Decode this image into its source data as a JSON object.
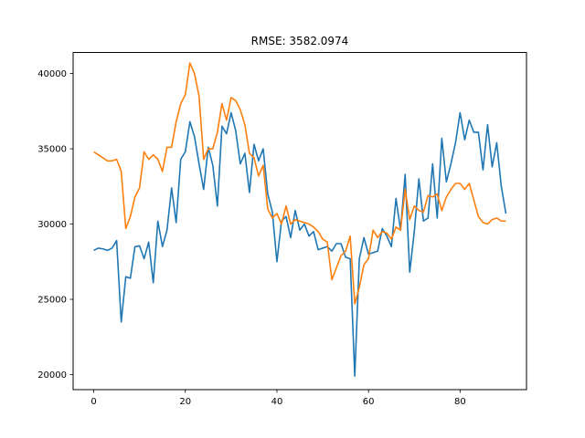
{
  "chart_data": {
    "type": "line",
    "title": "RMSE: 3582.0974",
    "xlabel": "",
    "ylabel": "",
    "xlim": [
      -4.5,
      94.5
    ],
    "ylim": [
      19000,
      41400
    ],
    "xticks": [
      0,
      20,
      40,
      60,
      80
    ],
    "yticks": [
      20000,
      25000,
      30000,
      35000,
      40000
    ],
    "x": [
      0,
      1,
      2,
      3,
      4,
      5,
      6,
      7,
      8,
      9,
      10,
      11,
      12,
      13,
      14,
      15,
      16,
      17,
      18,
      19,
      20,
      21,
      22,
      23,
      24,
      25,
      26,
      27,
      28,
      29,
      30,
      31,
      32,
      33,
      34,
      35,
      36,
      37,
      38,
      39,
      40,
      41,
      42,
      43,
      44,
      45,
      46,
      47,
      48,
      49,
      50,
      51,
      52,
      53,
      54,
      55,
      56,
      57,
      58,
      59,
      60,
      61,
      62,
      63,
      64,
      65,
      66,
      67,
      68,
      69,
      70,
      71,
      72,
      73,
      74,
      75,
      76,
      77,
      78,
      79,
      80,
      81,
      82,
      83,
      84,
      85,
      86,
      87,
      88,
      89,
      90
    ],
    "series": [
      {
        "color": "#1f77b4",
        "values": [
          28250,
          28400,
          28350,
          28250,
          28400,
          28900,
          23500,
          26500,
          26400,
          28500,
          28550,
          27700,
          28800,
          26100,
          30200,
          28500,
          29600,
          32400,
          30100,
          34300,
          34800,
          36800,
          35800,
          34000,
          32300,
          35100,
          33900,
          31200,
          36500,
          36000,
          37400,
          36200,
          34000,
          34700,
          32100,
          35300,
          34200,
          35000,
          32000,
          30800,
          27500,
          30200,
          30500,
          29100,
          30900,
          29600,
          30000,
          29200,
          29500,
          28300,
          28400,
          28500,
          28200,
          28700,
          28700,
          27800,
          27700,
          19900,
          27700,
          29100,
          28000,
          28100,
          28200,
          29700,
          29200,
          28500,
          31700,
          29600,
          33300,
          26800,
          29500,
          33000,
          30200,
          30400,
          34000,
          30400,
          35700,
          32800,
          34000,
          35400,
          37400,
          35600,
          36900,
          36100,
          36100,
          33600,
          36600,
          33800,
          35400,
          32500,
          30700
        ]
      },
      {
        "color": "#ff7f0e",
        "values": [
          34800,
          34600,
          34400,
          34200,
          34200,
          34300,
          33500,
          29700,
          30500,
          31800,
          32400,
          34800,
          34300,
          34600,
          34300,
          33500,
          35100,
          35100,
          36800,
          38000,
          38600,
          40700,
          40000,
          38500,
          34300,
          35000,
          35000,
          36100,
          38000,
          36900,
          38400,
          38200,
          37600,
          36600,
          34700,
          34400,
          33200,
          33900,
          31000,
          30400,
          30700,
          30000,
          31200,
          30000,
          30300,
          30200,
          30100,
          30000,
          29800,
          29500,
          29000,
          28800,
          26300,
          27100,
          27900,
          28200,
          29200,
          24700,
          25800,
          27300,
          27700,
          29600,
          29100,
          29500,
          29400,
          29000,
          29800,
          29600,
          32300,
          30300,
          31200,
          30900,
          30800,
          31900,
          31800,
          32000,
          30900,
          31800,
          32300,
          32700,
          32700,
          32300,
          32700,
          31600,
          30500,
          30100,
          30000,
          30300,
          30400,
          30200,
          30200
        ]
      }
    ],
    "grid": false,
    "legend": "none"
  }
}
